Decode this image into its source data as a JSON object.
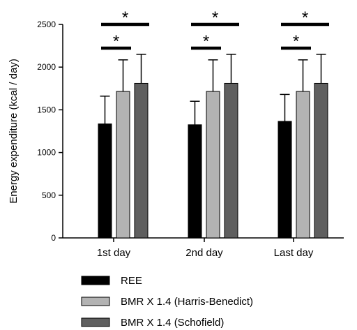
{
  "chart_data": {
    "type": "bar",
    "title": "",
    "xlabel": "",
    "ylabel": "Energy expenditure (kcal / day)",
    "ylim": [
      0,
      2500
    ],
    "yticks": [
      0,
      500,
      1000,
      1500,
      2000,
      2500
    ],
    "categories": [
      "1st day",
      "2nd day",
      "Last day"
    ],
    "series": [
      {
        "name": "REE",
        "color": "#000000",
        "values": [
          1335,
          1325,
          1365
        ],
        "error_upper": [
          1660,
          1600,
          1680
        ]
      },
      {
        "name": "BMR X 1.4 (Harris-Benedict)",
        "color": "#b3b3b3",
        "values": [
          1715,
          1715,
          1715
        ],
        "error_upper": [
          2085,
          2085,
          2085
        ]
      },
      {
        "name": "BMR X 1.4 (Schofield)",
        "color": "#5f5f5f",
        "values": [
          1810,
          1810,
          1810
        ],
        "error_upper": [
          2150,
          2150,
          2150
        ]
      }
    ],
    "significance": [
      {
        "category": "1st day",
        "from_series": 0,
        "to_series": 1,
        "label": "*"
      },
      {
        "category": "1st day",
        "from_series": 0,
        "to_series": 2,
        "label": "*"
      },
      {
        "category": "2nd day",
        "from_series": 0,
        "to_series": 1,
        "label": "*"
      },
      {
        "category": "2nd day",
        "from_series": 0,
        "to_series": 2,
        "label": "*"
      },
      {
        "category": "Last day",
        "from_series": 0,
        "to_series": 1,
        "label": "*"
      },
      {
        "category": "Last day",
        "from_series": 0,
        "to_series": 2,
        "label": "*"
      }
    ],
    "legend_position": "bottom",
    "grid": false
  }
}
